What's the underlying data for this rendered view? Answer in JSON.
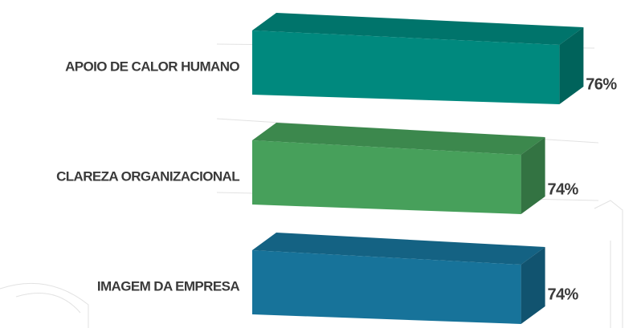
{
  "chart_data": {
    "type": "bar3d",
    "categories": [
      "APOIO DE CALOR HUMANO",
      "CLAREZA ORGANIZACIONAL",
      "IMAGEM DA EMPRESA"
    ],
    "series": [
      {
        "values": [
          76,
          74,
          74
        ],
        "value_labels": [
          "76%",
          "74%",
          "74%"
        ],
        "colors": [
          "#00897e",
          "#47a05b",
          "#17739a"
        ]
      }
    ],
    "xlim": [
      60,
      80
    ]
  }
}
